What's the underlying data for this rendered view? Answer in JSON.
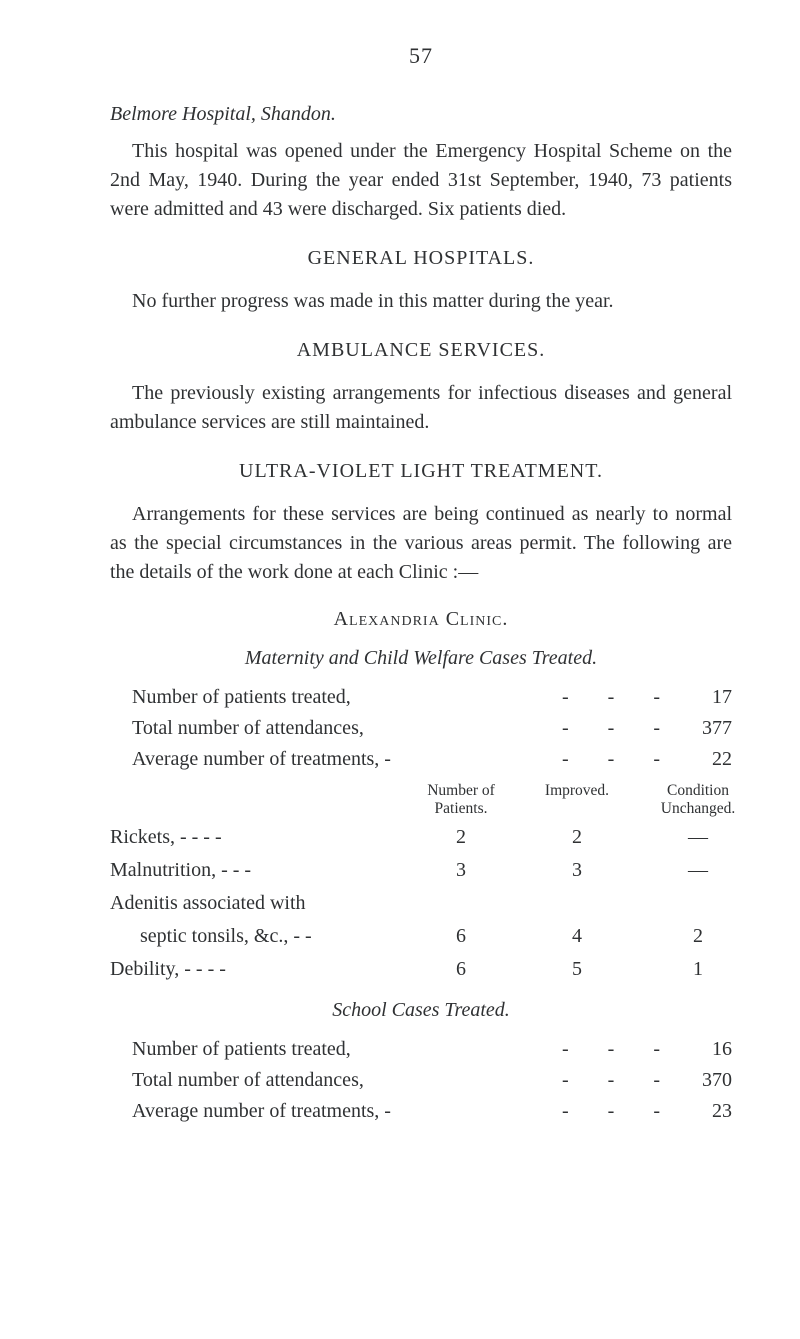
{
  "page_number": "57",
  "belmore": {
    "heading": "Belmore Hospital, Shandon.",
    "para": "This hospital was opened under the Emergency Hospital Scheme on the 2nd May, 1940. During the year ended 31st September, 1940, 73 patients were admitted and 43 were discharged. Six patients died."
  },
  "general_hospitals": {
    "heading": "GENERAL HOSPITALS.",
    "para": "No further progress was made in this matter during the year."
  },
  "ambulance": {
    "heading": "AMBULANCE SERVICES.",
    "para": "The previously existing arrangements for infectious diseases and general ambulance services are still maintained."
  },
  "uv": {
    "heading": "ULTRA-VIOLET LIGHT TREATMENT.",
    "para": "Arrangements for these services are being continued as nearly to normal as the special circumstances in the various areas permit. The following are the details of the work done at each Clinic :—"
  },
  "alexandria": {
    "heading": "Alexandria Clinic.",
    "maternity_heading": "Maternity and Child Welfare Cases Treated.",
    "stats": [
      {
        "label": "Number of patients treated,",
        "value": "17"
      },
      {
        "label": "Total number of attendances,",
        "value": "377"
      },
      {
        "label": "Average number of treatments, -",
        "value": "22"
      }
    ],
    "table": {
      "headers": {
        "num": "Number of\nPatients.",
        "imp": "Improved.",
        "cond": "Condition\nUnchanged."
      },
      "rows": [
        {
          "label": "Rickets,   -   -   -   -",
          "num": "2",
          "imp": "2",
          "cond": "—"
        },
        {
          "label": "Malnutrition,   -   -   -",
          "num": "3",
          "imp": "3",
          "cond": "—"
        },
        {
          "label": "Adenitis   associated   with",
          "num": "",
          "imp": "",
          "cond": ""
        },
        {
          "label": "septic tonsils, &c., -   -",
          "indent": true,
          "num": "6",
          "imp": "4",
          "cond": "2"
        },
        {
          "label": "Debility,   -   -   -   -",
          "num": "6",
          "imp": "5",
          "cond": "1"
        }
      ]
    },
    "school_heading": "School Cases Treated.",
    "school_stats": [
      {
        "label": "Number of patients treated,",
        "value": "16"
      },
      {
        "label": "Total number of attendances,",
        "value": "370"
      },
      {
        "label": "Average number of treatments, -",
        "value": "23"
      }
    ]
  },
  "dashes": "-   -   -"
}
